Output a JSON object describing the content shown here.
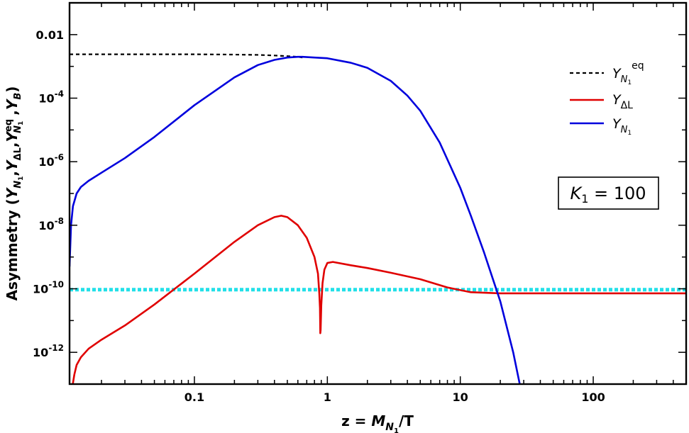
{
  "chart_data": {
    "type": "line",
    "xscale": "log",
    "yscale": "log",
    "xlim": [
      0.0115,
      500
    ],
    "ylim": [
      1e-13,
      0.1
    ],
    "xticks": [
      0.1,
      1,
      10,
      100
    ],
    "xtick_labels": [
      "0.1",
      "1",
      "10",
      "100"
    ],
    "yticks": [
      0.01,
      0.0001,
      1e-06,
      1e-08,
      1e-10,
      1e-12
    ],
    "ytick_labels": [
      {
        "base": "0.01",
        "exp": ""
      },
      {
        "base": "10",
        "exp": "-4"
      },
      {
        "base": "10",
        "exp": "-6"
      },
      {
        "base": "10",
        "exp": "-8"
      },
      {
        "base": "10",
        "exp": "-10"
      },
      {
        "base": "10",
        "exp": "-12"
      }
    ],
    "xlabel": {
      "pre": "z = ",
      "var": "M",
      "sub": "N",
      "subsub": "1",
      "post": "/T"
    },
    "ylabel": "Asymmetry (Y_{N_1}, Y_{ΔL}, Y^{eq}_{N_1}, Y_B)",
    "ylabel_parts": {
      "pre": "Asymmetry (",
      "y1": "Y",
      "y1sub": "N",
      "y1subsub": "1",
      "comma": ",",
      "y2": "Y",
      "y2sub": "ΔL",
      "y3": "Y",
      "y3sub": "N",
      "y3subsub": "1",
      "y3sup": "eq",
      "y4": "Y",
      "y4sub": "B",
      "post": ")"
    },
    "legend_position": "upper-right",
    "series": [
      {
        "name": "Y_N1^eq",
        "color": "#000000",
        "style": "dashed",
        "x": [
          0.0115,
          0.05,
          0.1,
          0.2,
          0.3,
          0.4,
          0.5,
          0.6,
          0.65
        ],
        "y": [
          0.0024,
          0.0024,
          0.0024,
          0.00235,
          0.0023,
          0.0022,
          0.0021,
          0.002,
          0.0019
        ]
      },
      {
        "name": "Y_ΔL",
        "color": "#e00000",
        "style": "solid",
        "x": [
          0.012,
          0.0125,
          0.013,
          0.014,
          0.016,
          0.02,
          0.03,
          0.05,
          0.1,
          0.2,
          0.3,
          0.4,
          0.45,
          0.5,
          0.6,
          0.7,
          0.8,
          0.85,
          0.87,
          0.88,
          0.885,
          0.89,
          0.9,
          0.92,
          0.95,
          1.0,
          1.1,
          1.5,
          2,
          3,
          5,
          8,
          12,
          20,
          50,
          100,
          200,
          500
        ],
        "y": [
          7e-14,
          2e-13,
          4e-13,
          7e-13,
          1.3e-12,
          2.5e-12,
          7e-12,
          3.2e-11,
          3e-10,
          3e-09,
          1e-08,
          1.8e-08,
          2e-08,
          1.8e-08,
          1e-08,
          4e-09,
          1e-09,
          3e-10,
          7e-11,
          2.5e-11,
          4e-12,
          5e-12,
          3e-11,
          1.5e-10,
          4e-10,
          6.5e-10,
          7e-10,
          5.5e-10,
          4.5e-10,
          3.2e-10,
          2e-10,
          1.1e-10,
          7.8e-11,
          7.2e-11,
          7.2e-11,
          7.2e-11,
          7.2e-11,
          7.2e-11
        ]
      },
      {
        "name": "Y_N1",
        "color": "#0000dd",
        "style": "solid",
        "x": [
          0.0115,
          0.0118,
          0.0122,
          0.013,
          0.014,
          0.016,
          0.02,
          0.03,
          0.05,
          0.1,
          0.2,
          0.3,
          0.4,
          0.5,
          0.6,
          0.65,
          0.8,
          1.0,
          1.5,
          2,
          3,
          4,
          5,
          7,
          10,
          12,
          15,
          20,
          25,
          28
        ],
        "y": [
          5e-10,
          1e-08,
          4e-08,
          1e-07,
          1.6e-07,
          2.5e-07,
          4.5e-07,
          1.3e-06,
          6e-06,
          6e-05,
          0.00045,
          0.0011,
          0.0016,
          0.0019,
          0.002,
          0.002,
          0.0019,
          0.0018,
          0.0013,
          0.0009,
          0.00035,
          0.00012,
          4e-05,
          4e-06,
          1.5e-07,
          2e-08,
          1.5e-09,
          4e-11,
          1e-12,
          1e-13
        ]
      },
      {
        "name": "Y_B",
        "color": "#22e0e8",
        "style": "dotted",
        "x": [
          0.0115,
          500
        ],
        "y": [
          9.4e-11,
          9.4e-11
        ]
      }
    ],
    "legend": [
      {
        "var": "Y",
        "sub": "N",
        "subsub": "1",
        "sup": "eq",
        "color": "#000000",
        "style": "dashed"
      },
      {
        "var": "Y",
        "sub": "ΔL",
        "subsub": "",
        "sup": "",
        "color": "#e00000",
        "style": "solid"
      },
      {
        "var": "Y",
        "sub": "N",
        "subsub": "1",
        "sup": "",
        "color": "#0000dd",
        "style": "solid"
      }
    ],
    "annotation": {
      "var": "K",
      "sub": "1",
      "text": " = 100"
    }
  }
}
